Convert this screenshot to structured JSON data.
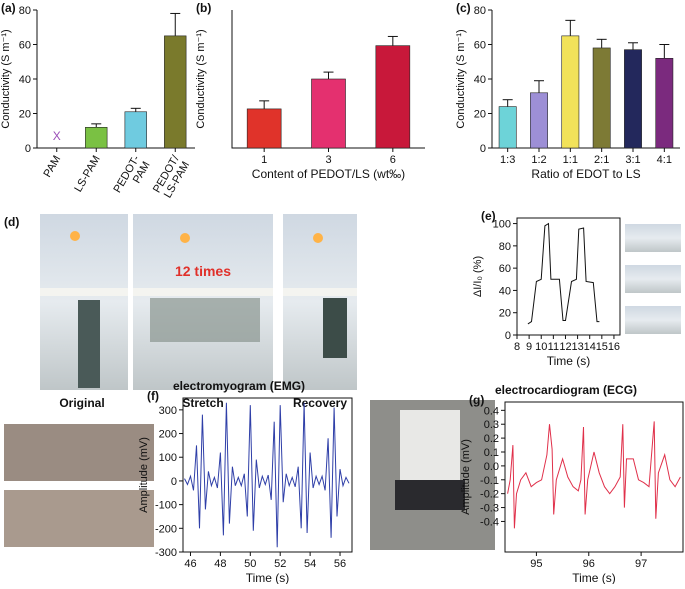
{
  "chart_data": [
    {
      "type": "bar",
      "label": "(a)",
      "ylabel": "Conductivity (S m⁻¹)",
      "categories": [
        "PAM",
        "LS-PAM",
        "PEDOT-\nPAM",
        "PEDOT/\nLS-PAM"
      ],
      "values": [
        null,
        12,
        21,
        65
      ],
      "errors": [
        null,
        2,
        2,
        13
      ],
      "colors": [
        "#9b4fb8",
        "#7ac143",
        "#6fcbe0",
        "#7a7a2c"
      ],
      "marker_label": "X",
      "ylim": [
        0,
        80
      ],
      "yticks": [
        0,
        20,
        40,
        60,
        80
      ],
      "rotate_labels": true
    },
    {
      "type": "bar",
      "label": "(b)",
      "ylabel": "Conductivity (S m⁻¹)",
      "xlabel": "Content of PEDOT/LS (wt‰)",
      "categories": [
        "1",
        "3",
        "6"
      ],
      "values": [
        34,
        60,
        89
      ],
      "errors": [
        7,
        6,
        8
      ],
      "colors": [
        "#e0332a",
        "#e4306f",
        "#c8183a"
      ],
      "ylim": [
        0,
        120
      ],
      "yticks": []
    },
    {
      "type": "bar",
      "label": "(c)",
      "ylabel": "Conductivity (S m⁻¹)",
      "xlabel": "Ratio of EDOT to LS",
      "categories": [
        "1:3",
        "1:2",
        "1:1",
        "2:1",
        "3:1",
        "4:1"
      ],
      "values": [
        24,
        32,
        65,
        58,
        57,
        52
      ],
      "errors": [
        4,
        7,
        9,
        5,
        4,
        8
      ],
      "colors": [
        "#6dd3d8",
        "#9d8fd6",
        "#f2e25a",
        "#7d7a35",
        "#23285c",
        "#7b2a7e"
      ],
      "ylim": [
        0,
        80
      ],
      "yticks": [
        0,
        20,
        40,
        60,
        80
      ]
    },
    {
      "type": "line",
      "label": "(e)",
      "ylabel": "ΔI/I₀ (%)",
      "xlabel": "Time (s)",
      "color": "#111111",
      "x": [
        8.9,
        9.2,
        9.6,
        10.0,
        10.3,
        10.6,
        10.8,
        11.5,
        11.8,
        12.0,
        12.5,
        12.9,
        13.1,
        13.5,
        13.7,
        14.3,
        14.6,
        14.8
      ],
      "values": [
        10,
        12,
        48,
        50,
        98,
        100,
        50,
        50,
        13,
        13,
        48,
        50,
        95,
        96,
        48,
        47,
        12,
        12
      ],
      "xlim": [
        8,
        16.5
      ],
      "xticks": [
        8,
        9,
        10,
        11,
        12,
        13,
        14,
        15,
        16
      ],
      "ylim": [
        0,
        105
      ],
      "yticks": [
        0,
        20,
        40,
        60,
        80,
        100
      ]
    },
    {
      "type": "line",
      "label": "(f)",
      "title": "electromyogram (EMG)",
      "ylabel": "Amplitude (mV)",
      "xlabel": "Time (s)",
      "color": "#2f3fa8",
      "x": [
        45.6,
        45.8,
        46.0,
        46.2,
        46.4,
        46.6,
        46.8,
        47.0,
        47.2,
        47.4,
        47.6,
        47.8,
        48.0,
        48.2,
        48.4,
        48.6,
        48.8,
        49.0,
        49.2,
        49.4,
        49.6,
        49.8,
        50.0,
        50.2,
        50.4,
        50.6,
        50.8,
        51.0,
        51.2,
        51.4,
        51.6,
        51.8,
        52.0,
        52.2,
        52.4,
        52.6,
        52.8,
        53.0,
        53.2,
        53.4,
        53.6,
        53.8,
        54.0,
        54.2,
        54.4,
        54.6,
        54.8,
        55.0,
        55.2,
        55.4,
        55.6,
        55.8,
        56.0,
        56.2,
        56.4,
        56.6
      ],
      "values": [
        10,
        -15,
        20,
        -40,
        150,
        -200,
        280,
        -120,
        40,
        -20,
        15,
        -30,
        120,
        -230,
        330,
        -180,
        60,
        -20,
        15,
        -20,
        30,
        -150,
        320,
        -210,
        90,
        -30,
        20,
        -15,
        25,
        -80,
        250,
        -280,
        320,
        -90,
        30,
        -20,
        15,
        -25,
        60,
        -200,
        330,
        -220,
        120,
        -30,
        20,
        -15,
        20,
        -40,
        180,
        -240,
        310,
        -150,
        50,
        -20,
        15,
        -10
      ],
      "xlim": [
        45.5,
        56.8
      ],
      "xticks": [
        46,
        48,
        50,
        52,
        54,
        56
      ],
      "ylim": [
        -300,
        350
      ],
      "yticks": [
        -300,
        -200,
        -100,
        0,
        100,
        200,
        300
      ]
    },
    {
      "type": "line",
      "label": "(g)",
      "title": "electrocardiogram (ECG)",
      "ylabel": "Amplitude (mV)",
      "xlabel": "Time (s)",
      "color": "#e0304a",
      "x": [
        94.45,
        94.5,
        94.55,
        94.58,
        94.62,
        94.7,
        94.8,
        94.9,
        95.0,
        95.1,
        95.2,
        95.25,
        95.3,
        95.33,
        95.38,
        95.5,
        95.6,
        95.7,
        95.8,
        95.85,
        95.9,
        95.93,
        95.98,
        96.1,
        96.2,
        96.3,
        96.4,
        96.5,
        96.6,
        96.65,
        96.68,
        96.72,
        96.85,
        96.95,
        97.05,
        97.15,
        97.25,
        97.28,
        97.33,
        97.45,
        97.55,
        97.65,
        97.75
      ],
      "values": [
        -0.2,
        -0.1,
        0.15,
        -0.45,
        -0.2,
        -0.1,
        -0.05,
        -0.15,
        -0.12,
        -0.1,
        0.08,
        0.3,
        0.12,
        -0.35,
        -0.1,
        0.05,
        -0.08,
        -0.15,
        -0.18,
        -0.1,
        0.28,
        -0.35,
        -0.1,
        0.1,
        -0.05,
        -0.15,
        -0.2,
        -0.15,
        -0.08,
        0.3,
        -0.3,
        0.05,
        0.05,
        -0.1,
        -0.12,
        -0.15,
        0.32,
        -0.38,
        -0.05,
        0.08,
        -0.1,
        -0.15,
        -0.08
      ],
      "xlim": [
        94.4,
        97.8
      ],
      "xticks": [
        95,
        96,
        97
      ],
      "ylim": [
        -0.62,
        0.46
      ],
      "yticks": [
        -0.4,
        -0.3,
        -0.2,
        -0.1,
        {
          "value": 0,
          "label": "0.0"
        },
        0.1,
        0.2,
        0.3,
        0.4
      ]
    }
  ],
  "photo_panel": {
    "label": "(d)",
    "captions": [
      "Original",
      "Stretch",
      "Recovery"
    ],
    "annotation": "12 times"
  }
}
